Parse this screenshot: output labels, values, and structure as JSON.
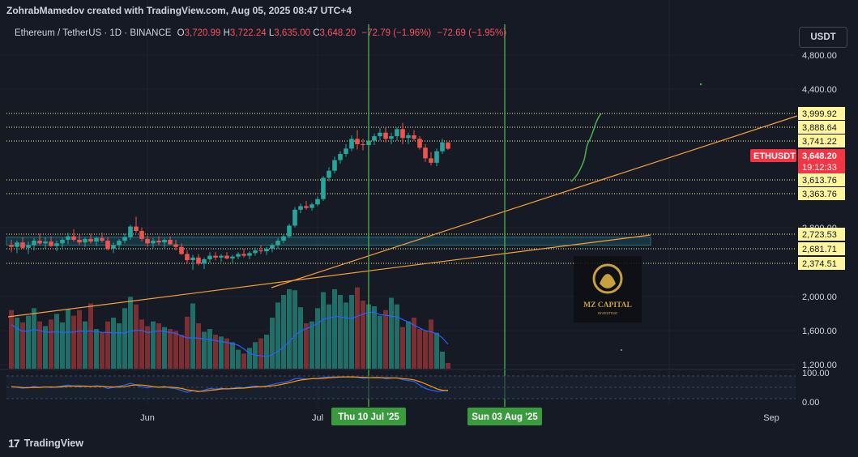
{
  "header": {
    "publisher": "ZohrabMamedov created with TradingView.com, Aug 05, 2025 08:47 UTC+4"
  },
  "legend": {
    "symbol": "Ethereum / TetherUS · 1D · BINANCE",
    "o_label": "O",
    "o": "3,720.99",
    "h_label": "H",
    "h": "3,722.24",
    "l_label": "L",
    "l": "3,635.00",
    "c_label": "C",
    "c": "3,648.20",
    "change": "−72.79 (−1.96%)",
    "change2": "−72.69 (−1.95%)"
  },
  "currency_button": "USDT",
  "footer": {
    "brand": "TradingView"
  },
  "watermark": {
    "line1": "MZ CAPITAL",
    "line2": "INVESTING"
  },
  "colors": {
    "bg": "#161a25",
    "up": "#26a69a",
    "down": "#ef5350",
    "vol_up": "#1f6f68",
    "vol_down": "#7c2f33",
    "trend": "#f5a03c",
    "vline": "#4caf50",
    "hline": "#fff59d",
    "rsi_blue": "#2962ff",
    "rsi_orange": "#ff9800",
    "ma_blue": "#2962ff"
  },
  "chart_data": {
    "type": "candlestick",
    "title": "Ethereum / TetherUS · 1D · BINANCE",
    "start_date": "2025-05-08",
    "y_ticks": [
      "4,800.00",
      "4,400.00",
      "2,800.00",
      "2,000.00",
      "1,600.00",
      "1,200.00"
    ],
    "y_tick_values": [
      4800,
      4400,
      2800,
      2000,
      1600,
      1200
    ],
    "rsi_ticks": [
      "100.00",
      "0.00"
    ],
    "x_ticks": [
      {
        "label": "Jun",
        "date": "2025-06-01"
      },
      {
        "label": "Jul",
        "date": "2025-07-01"
      },
      {
        "label": "Sep",
        "date": "2025-09-01"
      }
    ],
    "vertical_markers": [
      {
        "label": "Thu 10 Jul '25",
        "date": "2025-07-10"
      },
      {
        "label": "Sun 03 Aug '25",
        "date": "2025-08-03"
      }
    ],
    "horizontal_levels": [
      {
        "label": "3,999.92",
        "value": 3999.92
      },
      {
        "label": "3,888.64",
        "value": 3888.64
      },
      {
        "label": "3,741.22",
        "value": 3741.22
      },
      {
        "label": "3,613.76",
        "value": 3613.76
      },
      {
        "label": "3,363.76",
        "value": 3363.76
      },
      {
        "label": "2,723.53",
        "value": 2723.53
      },
      {
        "label": "2,681.71",
        "value": 2681.71
      },
      {
        "label": "2,374.51",
        "value": 2374.51
      }
    ],
    "last_price": {
      "symbol": "ETHUSDT",
      "value": "3,648.20",
      "countdown": "19:12:33",
      "price": 3648.2
    },
    "support_zone": {
      "from": 2560,
      "to": 2650
    },
    "ohlc": [
      [
        2560,
        2620,
        2480,
        2540
      ],
      [
        2540,
        2610,
        2470,
        2590
      ],
      [
        2590,
        2650,
        2520,
        2530
      ],
      [
        2530,
        2600,
        2460,
        2560
      ],
      [
        2560,
        2640,
        2500,
        2610
      ],
      [
        2610,
        2690,
        2560,
        2580
      ],
      [
        2580,
        2650,
        2520,
        2600
      ],
      [
        2600,
        2660,
        2540,
        2550
      ],
      [
        2550,
        2610,
        2490,
        2580
      ],
      [
        2580,
        2640,
        2530,
        2620
      ],
      [
        2620,
        2700,
        2570,
        2660
      ],
      [
        2660,
        2740,
        2600,
        2620
      ],
      [
        2620,
        2680,
        2560,
        2590
      ],
      [
        2590,
        2650,
        2540,
        2630
      ],
      [
        2630,
        2690,
        2580,
        2600
      ],
      [
        2600,
        2660,
        2550,
        2640
      ],
      [
        2640,
        2700,
        2590,
        2610
      ],
      [
        2610,
        2650,
        2500,
        2520
      ],
      [
        2520,
        2590,
        2470,
        2560
      ],
      [
        2560,
        2630,
        2510,
        2610
      ],
      [
        2610,
        2690,
        2580,
        2650
      ],
      [
        2650,
        2790,
        2620,
        2770
      ],
      [
        2770,
        2880,
        2700,
        2720
      ],
      [
        2720,
        2760,
        2600,
        2630
      ],
      [
        2630,
        2670,
        2540,
        2580
      ],
      [
        2580,
        2640,
        2530,
        2610
      ],
      [
        2610,
        2660,
        2560,
        2590
      ],
      [
        2590,
        2640,
        2530,
        2620
      ],
      [
        2620,
        2660,
        2560,
        2570
      ],
      [
        2570,
        2620,
        2500,
        2540
      ],
      [
        2540,
        2580,
        2450,
        2460
      ],
      [
        2460,
        2500,
        2350,
        2390
      ],
      [
        2390,
        2450,
        2280,
        2420
      ],
      [
        2420,
        2460,
        2330,
        2350
      ],
      [
        2350,
        2420,
        2290,
        2400
      ],
      [
        2400,
        2480,
        2360,
        2440
      ],
      [
        2440,
        2480,
        2390,
        2420
      ],
      [
        2420,
        2460,
        2370,
        2440
      ],
      [
        2440,
        2480,
        2400,
        2410
      ],
      [
        2410,
        2450,
        2360,
        2430
      ],
      [
        2430,
        2480,
        2400,
        2460
      ],
      [
        2460,
        2520,
        2420,
        2440
      ],
      [
        2440,
        2490,
        2400,
        2470
      ],
      [
        2470,
        2530,
        2440,
        2500
      ],
      [
        2500,
        2560,
        2460,
        2490
      ],
      [
        2490,
        2540,
        2450,
        2520
      ],
      [
        2520,
        2580,
        2480,
        2560
      ],
      [
        2560,
        2640,
        2520,
        2610
      ],
      [
        2610,
        2680,
        2580,
        2660
      ],
      [
        2660,
        2800,
        2640,
        2780
      ],
      [
        2780,
        2990,
        2760,
        2960
      ],
      [
        2960,
        3030,
        2920,
        3000
      ],
      [
        3000,
        3060,
        2960,
        2980
      ],
      [
        2980,
        3040,
        2950,
        3020
      ],
      [
        3020,
        3110,
        3000,
        3080
      ],
      [
        3080,
        3340,
        3060,
        3320
      ],
      [
        3320,
        3440,
        3280,
        3400
      ],
      [
        3400,
        3560,
        3370,
        3520
      ],
      [
        3520,
        3620,
        3480,
        3590
      ],
      [
        3590,
        3700,
        3560,
        3650
      ],
      [
        3650,
        3800,
        3620,
        3760
      ],
      [
        3760,
        3860,
        3640,
        3700
      ],
      [
        3700,
        3760,
        3630,
        3690
      ],
      [
        3690,
        3780,
        3620,
        3740
      ],
      [
        3740,
        3820,
        3690,
        3790
      ],
      [
        3790,
        3880,
        3740,
        3830
      ],
      [
        3830,
        3890,
        3720,
        3760
      ],
      [
        3760,
        3830,
        3700,
        3790
      ],
      [
        3790,
        3890,
        3740,
        3870
      ],
      [
        3870,
        3940,
        3700,
        3770
      ],
      [
        3770,
        3830,
        3700,
        3800
      ],
      [
        3800,
        3860,
        3740,
        3760
      ],
      [
        3760,
        3790,
        3640,
        3660
      ],
      [
        3660,
        3700,
        3500,
        3540
      ],
      [
        3540,
        3610,
        3460,
        3490
      ],
      [
        3490,
        3650,
        3450,
        3620
      ],
      [
        3620,
        3760,
        3590,
        3721
      ],
      [
        3721,
        3722,
        3635,
        3648
      ]
    ],
    "volume": [
      1820,
      1740,
      1690,
      1760,
      1840,
      1700,
      1650,
      1720,
      1780,
      1690,
      1830,
      1760,
      1820,
      1700,
      1890,
      1620,
      1580,
      1700,
      1740,
      1680,
      1840,
      1960,
      1880,
      1720,
      1650,
      1700,
      1680,
      1640,
      1620,
      1600,
      1560,
      1750,
      1890,
      1680,
      1590,
      1620,
      1560,
      1540,
      1520,
      1480,
      1400,
      1360,
      1420,
      1480,
      1520,
      1560,
      1740,
      1900,
      1980,
      2040,
      2030,
      1850,
      1680,
      1700,
      1840,
      2010,
      1880,
      2040,
      1980,
      1900,
      1980,
      2060,
      1920,
      1880,
      1860,
      1760,
      1820,
      1950,
      1880,
      1640,
      1700,
      1740,
      1620,
      1600,
      1720,
      1580,
      1380,
      1260
    ],
    "rsi": [
      52,
      50,
      46,
      48,
      54,
      50,
      52,
      49,
      52,
      56,
      60,
      55,
      52,
      55,
      53,
      57,
      54,
      45,
      50,
      55,
      60,
      68,
      60,
      52,
      48,
      52,
      50,
      54,
      47,
      44,
      36,
      28,
      35,
      30,
      38,
      45,
      42,
      46,
      42,
      46,
      50,
      48,
      52,
      56,
      52,
      56,
      62,
      68,
      72,
      78,
      88,
      90,
      86,
      88,
      90,
      94,
      95,
      96,
      96,
      96,
      96,
      94,
      90,
      92,
      94,
      94,
      88,
      90,
      92,
      84,
      80,
      76,
      60,
      45,
      38,
      32,
      34,
      38
    ],
    "projection": "curve from 3,363.76 up to ~4,050"
  }
}
